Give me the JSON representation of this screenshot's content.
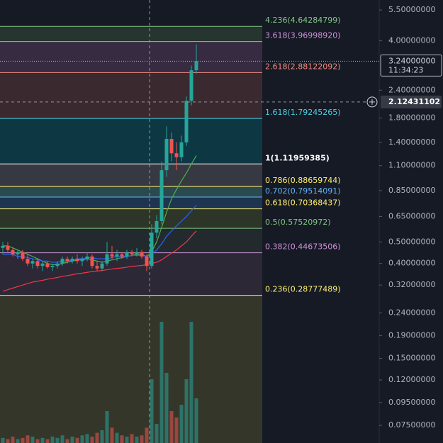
{
  "chart_data": {
    "type": "candlestick",
    "log_scale": true,
    "ylim": [
      0.0625,
      6.1
    ],
    "yticks": [
      {
        "value": 5.5,
        "label": "5.50000000"
      },
      {
        "value": 4.0,
        "label": "4.00000000"
      },
      {
        "value": 2.4,
        "label": "2.40000000"
      },
      {
        "value": 1.8,
        "label": "1.80000000"
      },
      {
        "value": 1.4,
        "label": "1.40000000"
      },
      {
        "value": 1.1,
        "label": "1.10000000"
      },
      {
        "value": 0.85,
        "label": "0.85000000"
      },
      {
        "value": 0.65,
        "label": "0.65000000"
      },
      {
        "value": 0.5,
        "label": "0.50000000"
      },
      {
        "value": 0.4,
        "label": "0.40000000"
      },
      {
        "value": 0.32,
        "label": "0.32000000"
      },
      {
        "value": 0.24,
        "label": "0.24000000"
      },
      {
        "value": 0.19,
        "label": "0.19000000"
      },
      {
        "value": 0.15,
        "label": "0.15000000"
      },
      {
        "value": 0.12,
        "label": "0.12000000"
      },
      {
        "value": 0.095,
        "label": "0.09500000"
      },
      {
        "value": 0.075,
        "label": "0.07500000"
      }
    ],
    "fib_levels": [
      {
        "label": "4.236(4.64284799)",
        "price": 4.64284799,
        "color": "#81c784",
        "zone_color": "#26352f"
      },
      {
        "label": "3.618(3.96998920)",
        "price": 3.9699892,
        "color": "#ce93d8",
        "zone_color": "#362b40"
      },
      {
        "label": "2.618(2.88122092)",
        "price": 2.88122092,
        "color": "#f28b82",
        "zone_color": "#3a2a2f"
      },
      {
        "label": "1.618(1.79245265)",
        "price": 1.79245265,
        "color": "#4dd0e1",
        "zone_color": "#0e3744"
      },
      {
        "label": "1(1.11959385)",
        "price": 1.11959385,
        "color": "#ffffff",
        "zone_color": "#363941"
      },
      {
        "label": "0.786(0.88659744)",
        "price": 0.88659744,
        "color": "#fff176",
        "zone_color": "#2a4a50"
      },
      {
        "label": "0.702(0.79514091)",
        "price": 0.79514091,
        "color": "#64b5f6",
        "zone_color": "#1d3550"
      },
      {
        "label": "0.618(0.70368437)",
        "price": 0.70368437,
        "color": "#fff176",
        "zone_color": "#2c3528"
      },
      {
        "label": "0.5(0.57520972)",
        "price": 0.57520972,
        "color": "#81c784",
        "zone_color": "#222a2d"
      },
      {
        "label": "0.382(0.44673506)",
        "price": 0.44673506,
        "color": "#ce93d8",
        "zone_color": "#2c2836"
      },
      {
        "label": "0.236(0.28777489)",
        "price": 0.28777489,
        "color": "#fff176",
        "zone_color": "#35362a"
      }
    ],
    "last_price": {
      "value": 3.24,
      "label": "3.24000000",
      "countdown": "11:34:23"
    },
    "crosshair_price": 2.12431102,
    "up_color": "#26a69a",
    "down_color": "#ef5350",
    "candles": {
      "open": [
        0.47,
        0.48,
        0.46,
        0.44,
        0.45,
        0.42,
        0.4,
        0.41,
        0.39,
        0.4,
        0.385,
        0.39,
        0.4,
        0.42,
        0.41,
        0.42,
        0.41,
        0.42,
        0.43,
        0.39,
        0.38,
        0.4,
        0.44,
        0.43,
        0.44,
        0.43,
        0.45,
        0.44,
        0.45,
        0.43,
        0.39,
        0.55,
        0.62,
        1.05,
        1.45,
        1.25,
        1.2,
        1.4,
        2.15,
        2.95
      ],
      "high": [
        0.5,
        0.5,
        0.47,
        0.46,
        0.46,
        0.44,
        0.42,
        0.42,
        0.41,
        0.41,
        0.4,
        0.41,
        0.43,
        0.43,
        0.43,
        0.44,
        0.43,
        0.45,
        0.44,
        0.41,
        0.41,
        0.5,
        0.48,
        0.46,
        0.45,
        0.46,
        0.46,
        0.47,
        0.46,
        0.44,
        0.6,
        0.66,
        1.15,
        1.65,
        1.55,
        1.4,
        1.5,
        2.25,
        3.1,
        3.85
      ],
      "low": [
        0.44,
        0.45,
        0.43,
        0.42,
        0.41,
        0.39,
        0.38,
        0.38,
        0.37,
        0.38,
        0.37,
        0.38,
        0.39,
        0.4,
        0.4,
        0.4,
        0.39,
        0.41,
        0.38,
        0.37,
        0.37,
        0.39,
        0.42,
        0.41,
        0.42,
        0.42,
        0.43,
        0.43,
        0.42,
        0.37,
        0.38,
        0.52,
        0.6,
        0.98,
        1.15,
        1.05,
        1.15,
        1.35,
        2.05,
        2.85
      ],
      "close": [
        0.48,
        0.46,
        0.44,
        0.45,
        0.42,
        0.4,
        0.41,
        0.39,
        0.4,
        0.385,
        0.39,
        0.4,
        0.42,
        0.41,
        0.42,
        0.41,
        0.42,
        0.43,
        0.39,
        0.38,
        0.4,
        0.44,
        0.43,
        0.44,
        0.43,
        0.45,
        0.44,
        0.45,
        0.43,
        0.39,
        0.55,
        0.62,
        1.05,
        1.45,
        1.25,
        1.2,
        1.4,
        2.15,
        2.95,
        3.24
      ]
    },
    "volume_lim": [
      0,
      100
    ],
    "volumes": [
      4,
      3,
      5,
      3,
      4,
      6,
      5,
      3,
      4,
      3,
      5,
      4,
      6,
      3,
      5,
      4,
      6,
      7,
      5,
      8,
      10,
      25,
      12,
      8,
      6,
      5,
      7,
      5,
      6,
      12,
      50,
      15,
      95,
      55,
      25,
      20,
      30,
      50,
      95,
      35
    ],
    "moving_averages": [
      {
        "color": "#4caf50",
        "values": [
          0.48,
          0.48,
          0.47,
          0.46,
          0.45,
          0.44,
          0.43,
          0.42,
          0.41,
          0.4,
          0.395,
          0.395,
          0.4,
          0.405,
          0.41,
          0.415,
          0.415,
          0.42,
          0.415,
          0.41,
          0.405,
          0.41,
          0.415,
          0.42,
          0.425,
          0.43,
          0.435,
          0.44,
          0.44,
          0.43,
          0.45,
          0.5,
          0.58,
          0.68,
          0.78,
          0.86,
          0.94,
          1.02,
          1.12,
          1.22
        ]
      },
      {
        "color": "#2962ff",
        "values": [
          0.44,
          0.44,
          0.44,
          0.43,
          0.43,
          0.425,
          0.42,
          0.415,
          0.41,
          0.41,
          0.405,
          0.405,
          0.41,
          0.41,
          0.415,
          0.42,
          0.42,
          0.425,
          0.425,
          0.42,
          0.42,
          0.42,
          0.425,
          0.43,
          0.43,
          0.43,
          0.435,
          0.435,
          0.435,
          0.43,
          0.44,
          0.46,
          0.49,
          0.53,
          0.56,
          0.59,
          0.62,
          0.65,
          0.69,
          0.73
        ]
      },
      {
        "color": "#f23645",
        "values": [
          0.3,
          0.305,
          0.31,
          0.315,
          0.32,
          0.325,
          0.33,
          0.333,
          0.336,
          0.34,
          0.343,
          0.346,
          0.35,
          0.353,
          0.356,
          0.36,
          0.362,
          0.365,
          0.368,
          0.37,
          0.372,
          0.375,
          0.378,
          0.38,
          0.382,
          0.385,
          0.388,
          0.39,
          0.392,
          0.395,
          0.4,
          0.405,
          0.415,
          0.43,
          0.445,
          0.46,
          0.48,
          0.5,
          0.53,
          0.56
        ]
      }
    ]
  }
}
